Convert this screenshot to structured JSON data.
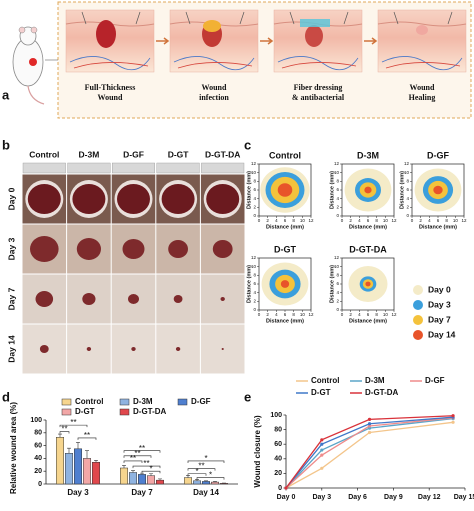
{
  "panels": [
    "a",
    "b",
    "c",
    "d",
    "e"
  ],
  "scheme": {
    "steps": [
      [
        "Full-Thickness",
        "Wound"
      ],
      [
        "Wound",
        "infection"
      ],
      [
        "Fiber dressing",
        "& antibacterial"
      ],
      [
        "Wound",
        "Healing"
      ]
    ]
  },
  "photos": {
    "groups": [
      "Control",
      "D-3M",
      "D-GF",
      "D-GT",
      "D-GT-DA"
    ],
    "days": [
      "Day 0",
      "Day 3",
      "Day 7",
      "Day 14"
    ]
  },
  "traces": {
    "groups": [
      "Control",
      "D-3M",
      "D-GF",
      "D-GT",
      "D-GT-DA"
    ],
    "axis_label": "Distance (mm)",
    "ticks": [
      0,
      2,
      4,
      6,
      8,
      10,
      12
    ],
    "legend": [
      {
        "name": "Day 0",
        "color": "#f4ebc8"
      },
      {
        "name": "Day 3",
        "color": "#3b9fdc"
      },
      {
        "name": "Day 7",
        "color": "#f4c23c"
      },
      {
        "name": "Day 14",
        "color": "#e8542a"
      }
    ]
  },
  "chart_data": [
    {
      "type": "bar",
      "y_label": "Relative wound area (%)",
      "categories": [
        "Day 3",
        "Day 7",
        "Day 14"
      ],
      "series": [
        {
          "name": "Control",
          "color": "#f6d58e",
          "values": [
            73,
            25,
            10
          ],
          "errors": [
            5,
            4,
            3
          ]
        },
        {
          "name": "D-3M",
          "color": "#8fb3e0",
          "values": [
            48,
            18,
            5
          ],
          "errors": [
            8,
            3,
            2
          ]
        },
        {
          "name": "D-GF",
          "color": "#4f7fcf",
          "values": [
            55,
            15,
            4
          ],
          "errors": [
            10,
            2,
            1
          ]
        },
        {
          "name": "D-GT",
          "color": "#f2a7a7",
          "values": [
            40,
            13,
            3
          ],
          "errors": [
            12,
            3,
            1
          ]
        },
        {
          "name": "D-GT-DA",
          "color": "#e0474c",
          "values": [
            34,
            6,
            1
          ],
          "errors": [
            3,
            2,
            0.5
          ]
        }
      ],
      "ylim": [
        0,
        100
      ],
      "yticks": [
        0,
        20,
        40,
        60,
        80,
        100
      ],
      "annotations": [
        "**",
        "**",
        "**",
        "**",
        "**",
        "**",
        "**",
        "*",
        "*",
        "**",
        "*",
        "*"
      ]
    },
    {
      "type": "line",
      "y_label": "Wound closure (%)",
      "x": [
        0,
        3,
        7,
        14
      ],
      "series": [
        {
          "name": "Control",
          "color": "#f3c58b",
          "values": [
            0,
            27,
            76,
            90
          ]
        },
        {
          "name": "D-3M",
          "color": "#5aa5c8",
          "values": [
            0,
            52,
            82,
            95
          ]
        },
        {
          "name": "D-GF",
          "color": "#ef8b8b",
          "values": [
            0,
            45,
            85,
            96
          ]
        },
        {
          "name": "D-GT",
          "color": "#3f78c8",
          "values": [
            0,
            60,
            88,
            97
          ]
        },
        {
          "name": "D-GT-DA",
          "color": "#d9323a",
          "values": [
            0,
            66,
            94,
            99
          ]
        }
      ],
      "xlim": [
        0,
        15
      ],
      "xticks": [
        {
          "value": 0,
          "label": "Day 0"
        },
        {
          "value": 3,
          "label": "Day 3"
        },
        {
          "value": 6,
          "label": "Day 6"
        },
        {
          "value": 9,
          "label": "Day 9"
        },
        {
          "value": 12,
          "label": "Day 12"
        },
        {
          "value": 15,
          "label": "Day 15"
        }
      ],
      "ylim": [
        0,
        100
      ],
      "yticks": [
        0,
        20,
        40,
        60,
        80,
        100
      ]
    }
  ]
}
